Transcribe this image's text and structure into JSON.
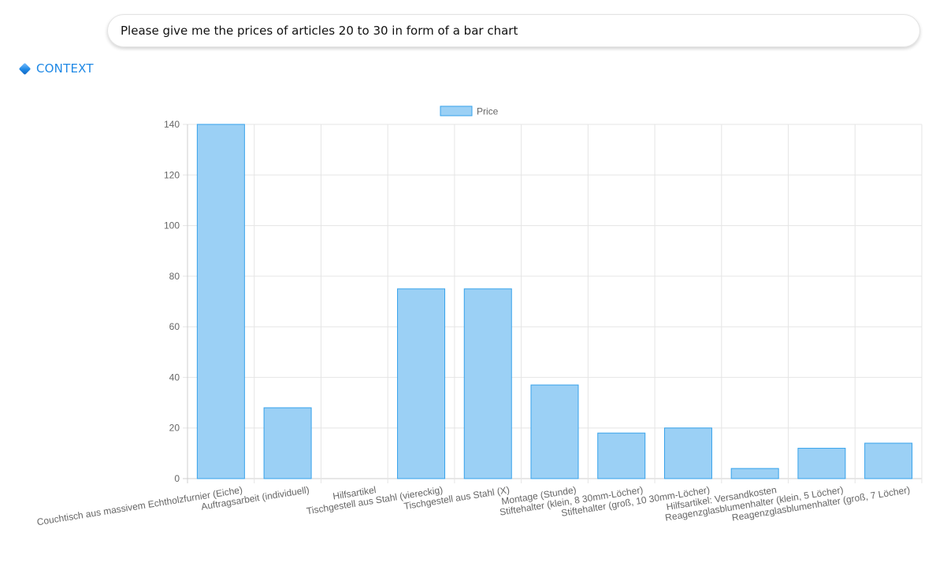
{
  "prompt": {
    "text": "Please give me the prices of articles 20 to 30 in form of a bar chart"
  },
  "context": {
    "label": "CONTEXT"
  },
  "colors": {
    "bar_fill": "#9bd0f5",
    "bar_stroke": "#36a2eb",
    "grid": "#e5e5e5",
    "tick_text": "#666666",
    "link": "#1e88e5"
  },
  "chart_data": {
    "type": "bar",
    "legend": {
      "position": "top-center",
      "entries": [
        "Price"
      ]
    },
    "categories": [
      "Couchtisch aus massivem Echtholzfurnier (Eiche)",
      "Auftragsarbeit (individuell)",
      "Hilfsartikel",
      "Tischgestell aus Stahl (viereckig)",
      "Tischgestell aus Stahl (X)",
      "Montage (Stunde)",
      "Stiftehalter (klein, 8 30mm-Löcher)",
      "Stiftehalter (groß, 10 30mm-Löcher)",
      "Hilfsartikel: Versandkosten",
      "Reagenzglasblumenhalter (klein, 5 Löcher)",
      "Reagenzglasblumenhalter (groß, 7 Löcher)"
    ],
    "series": [
      {
        "name": "Price",
        "values": [
          140,
          28,
          0,
          75,
          75,
          37,
          18,
          20,
          4,
          12,
          14
        ]
      }
    ],
    "ylim": [
      0,
      140
    ],
    "yticks": [
      0,
      20,
      40,
      60,
      80,
      100,
      120,
      140
    ],
    "grid": true
  }
}
